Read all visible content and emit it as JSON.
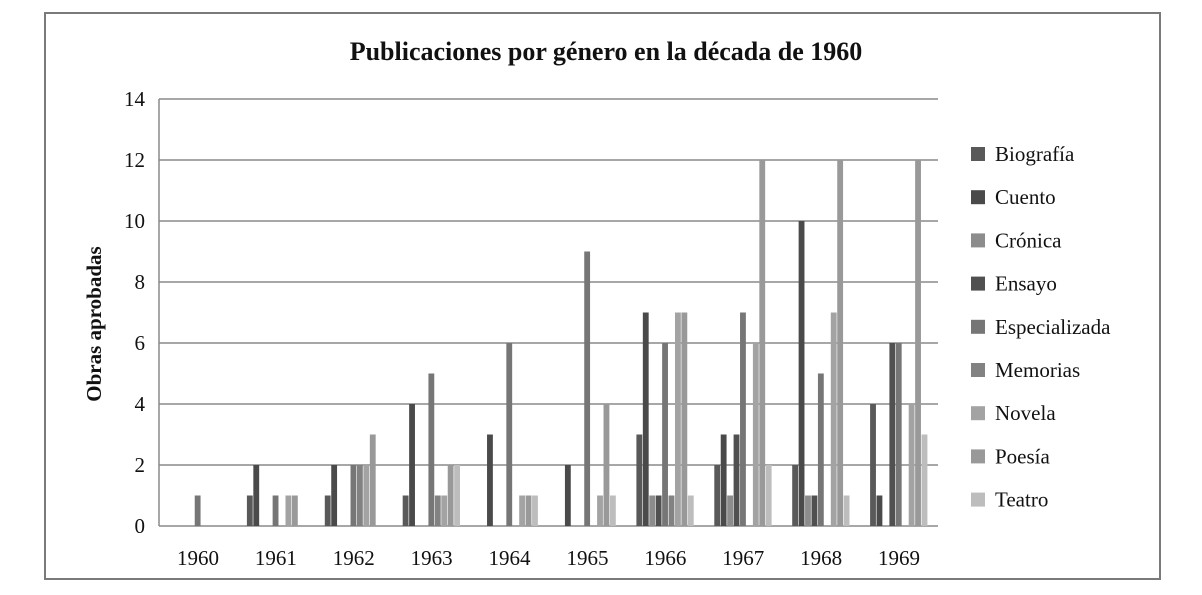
{
  "chart_data": {
    "type": "bar",
    "title": "Publicaciones por género en la década de 1960",
    "xlabel": "",
    "ylabel": "Obras aprobadas",
    "ylim": [
      0,
      14
    ],
    "yticks": [
      0,
      2,
      4,
      6,
      8,
      10,
      12,
      14
    ],
    "grid": true,
    "legend_position": "right",
    "categories": [
      "1960",
      "1961",
      "1962",
      "1963",
      "1964",
      "1965",
      "1966",
      "1967",
      "1968",
      "1969"
    ],
    "series": [
      {
        "name": "Biografía",
        "color": "#595959",
        "values": [
          0,
          1,
          1,
          1,
          0,
          0,
          3,
          2,
          2,
          4
        ]
      },
      {
        "name": "Cuento",
        "color": "#4a4a4a",
        "values": [
          0,
          2,
          2,
          4,
          3,
          2,
          7,
          3,
          10,
          1
        ]
      },
      {
        "name": "Crónica",
        "color": "#8c8c8c",
        "values": [
          0,
          0,
          0,
          0,
          0,
          0,
          1,
          1,
          1,
          0
        ]
      },
      {
        "name": "Ensayo",
        "color": "#505050",
        "values": [
          0,
          0,
          0,
          0,
          0,
          0,
          1,
          3,
          1,
          6
        ]
      },
      {
        "name": "Especializada",
        "color": "#767676",
        "values": [
          1,
          1,
          2,
          5,
          6,
          9,
          6,
          7,
          5,
          6
        ]
      },
      {
        "name": "Memorias",
        "color": "#828282",
        "values": [
          0,
          0,
          2,
          1,
          0,
          0,
          1,
          0,
          0,
          0
        ]
      },
      {
        "name": "Novela",
        "color": "#a3a3a3",
        "values": [
          0,
          1,
          2,
          1,
          1,
          1,
          7,
          6,
          7,
          4
        ]
      },
      {
        "name": "Poesía",
        "color": "#999999",
        "values": [
          0,
          1,
          3,
          2,
          1,
          4,
          7,
          12,
          12,
          12
        ]
      },
      {
        "name": "Teatro",
        "color": "#bdbdbd",
        "values": [
          0,
          0,
          0,
          2,
          1,
          1,
          1,
          2,
          1,
          3
        ]
      }
    ]
  }
}
